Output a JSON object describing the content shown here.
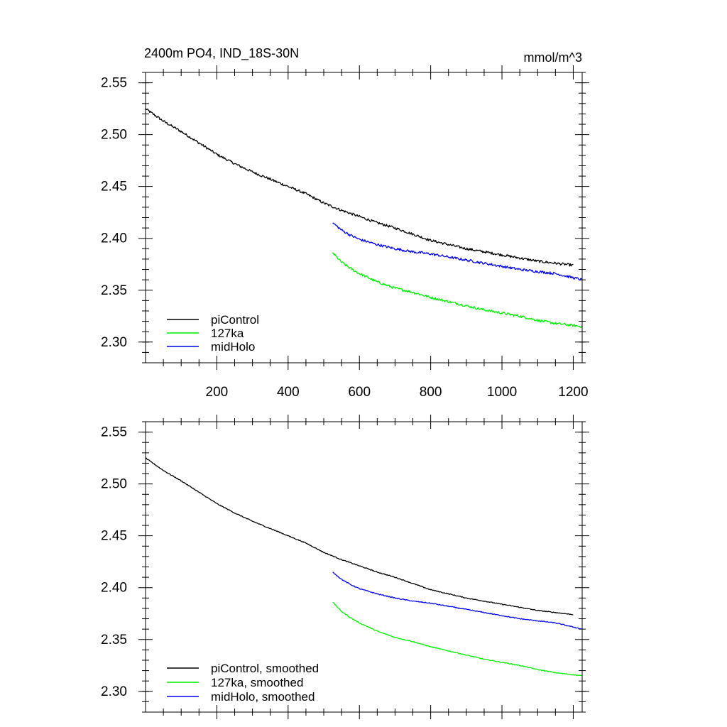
{
  "chart_data": [
    {
      "type": "line",
      "title": "2400m PO4, IND_18S-30N",
      "units": "mmol/m^3",
      "xlim": [
        0,
        1225
      ],
      "ylim": [
        2.28,
        2.56
      ],
      "x_ticks": [
        200,
        400,
        600,
        800,
        1000,
        1200
      ],
      "x_tick_labels": [
        "200",
        "400",
        "600",
        "800",
        "1000",
        "1200"
      ],
      "y_ticks": [
        2.3,
        2.35,
        2.4,
        2.45,
        2.5,
        2.55
      ],
      "y_tick_labels": [
        "2.30",
        "2.35",
        "2.40",
        "2.45",
        "2.50",
        "2.55"
      ],
      "legend_position": "bottom-left",
      "series": [
        {
          "name": "piControl",
          "color": "#000000",
          "noise": 0.0012,
          "x": [
            0,
            50,
            100,
            150,
            200,
            250,
            300,
            350,
            400,
            450,
            500,
            550,
            600,
            650,
            700,
            750,
            800,
            850,
            900,
            950,
            1000,
            1050,
            1100,
            1150,
            1200
          ],
          "y": [
            2.525,
            2.513,
            2.503,
            2.492,
            2.481,
            2.472,
            2.464,
            2.457,
            2.45,
            2.443,
            2.434,
            2.427,
            2.421,
            2.415,
            2.41,
            2.404,
            2.398,
            2.394,
            2.39,
            2.387,
            2.384,
            2.381,
            2.378,
            2.376,
            2.374
          ]
        },
        {
          "name": "127ka",
          "color": "#00ee00",
          "noise": 0.0012,
          "x": [
            525,
            550,
            575,
            600,
            650,
            700,
            750,
            800,
            850,
            900,
            950,
            1000,
            1050,
            1100,
            1150,
            1200,
            1225
          ],
          "y": [
            2.386,
            2.377,
            2.371,
            2.366,
            2.358,
            2.352,
            2.348,
            2.343,
            2.339,
            2.335,
            2.331,
            2.328,
            2.325,
            2.321,
            2.318,
            2.316,
            2.315
          ]
        },
        {
          "name": "midHolo",
          "color": "#0000ee",
          "noise": 0.0012,
          "x": [
            525,
            550,
            575,
            600,
            650,
            700,
            750,
            800,
            850,
            900,
            950,
            1000,
            1050,
            1100,
            1150,
            1200,
            1225
          ],
          "y": [
            2.415,
            2.408,
            2.403,
            2.399,
            2.394,
            2.39,
            2.387,
            2.385,
            2.382,
            2.379,
            2.376,
            2.373,
            2.37,
            2.368,
            2.366,
            2.362,
            2.36
          ]
        }
      ]
    },
    {
      "type": "line",
      "title": "",
      "units": "",
      "xlim": [
        0,
        1225
      ],
      "ylim": [
        2.28,
        2.56
      ],
      "x_ticks": [
        200,
        400,
        600,
        800,
        1000,
        1200
      ],
      "x_tick_labels": [],
      "y_ticks": [
        2.3,
        2.35,
        2.4,
        2.45,
        2.5,
        2.55
      ],
      "y_tick_labels": [
        "2.30",
        "2.35",
        "2.40",
        "2.45",
        "2.50",
        "2.55"
      ],
      "legend_position": "bottom-left",
      "series": [
        {
          "name": "piControl, smoothed",
          "color": "#000000",
          "noise": 0.0004,
          "x": [
            0,
            50,
            100,
            150,
            200,
            250,
            300,
            350,
            400,
            450,
            500,
            550,
            600,
            650,
            700,
            750,
            800,
            850,
            900,
            950,
            1000,
            1050,
            1100,
            1150,
            1200
          ],
          "y": [
            2.525,
            2.513,
            2.503,
            2.492,
            2.481,
            2.472,
            2.464,
            2.457,
            2.45,
            2.443,
            2.434,
            2.427,
            2.421,
            2.415,
            2.41,
            2.404,
            2.398,
            2.394,
            2.39,
            2.387,
            2.384,
            2.381,
            2.378,
            2.376,
            2.374
          ]
        },
        {
          "name": "127ka, smoothed",
          "color": "#00ee00",
          "noise": 0.0004,
          "x": [
            525,
            550,
            575,
            600,
            650,
            700,
            750,
            800,
            850,
            900,
            950,
            1000,
            1050,
            1100,
            1150,
            1200,
            1225
          ],
          "y": [
            2.386,
            2.377,
            2.371,
            2.366,
            2.358,
            2.352,
            2.348,
            2.343,
            2.339,
            2.335,
            2.331,
            2.328,
            2.325,
            2.321,
            2.318,
            2.316,
            2.315
          ]
        },
        {
          "name": "midHolo, smoothed",
          "color": "#0000ee",
          "noise": 0.0004,
          "x": [
            525,
            550,
            575,
            600,
            650,
            700,
            750,
            800,
            850,
            900,
            950,
            1000,
            1050,
            1100,
            1150,
            1200,
            1225
          ],
          "y": [
            2.415,
            2.408,
            2.403,
            2.399,
            2.394,
            2.39,
            2.387,
            2.385,
            2.382,
            2.379,
            2.376,
            2.373,
            2.37,
            2.368,
            2.366,
            2.362,
            2.36
          ]
        }
      ]
    }
  ]
}
